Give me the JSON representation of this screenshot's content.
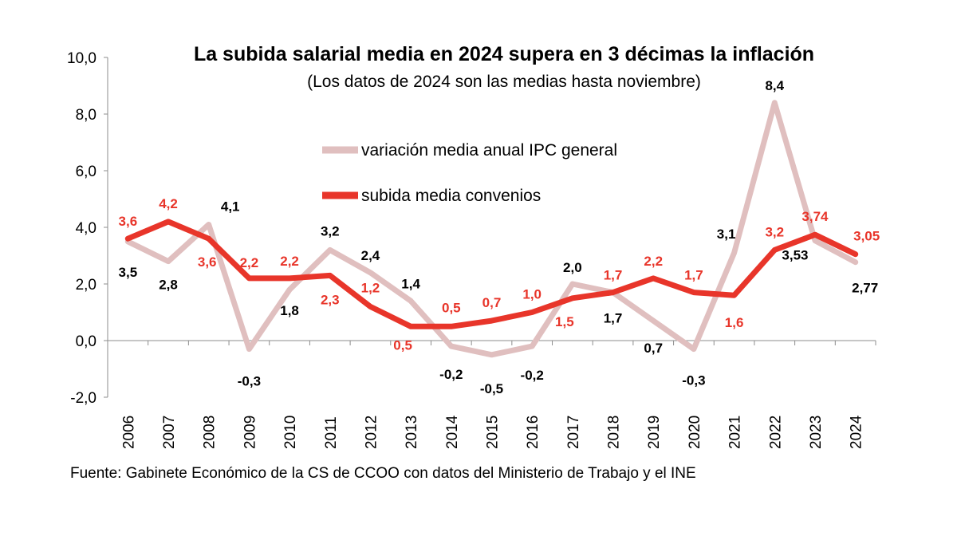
{
  "chart_data": {
    "type": "line",
    "title": "La subida salarial media en 2024 supera en 3 décimas la inflación",
    "subtitle": "(Los datos de 2024 son las medias hasta noviembre)",
    "categories": [
      "2006",
      "2007",
      "2008",
      "2009",
      "2010",
      "2011",
      "2012",
      "2013",
      "2014",
      "2015",
      "2016",
      "2017",
      "2018",
      "2019",
      "2020",
      "2021",
      "2022",
      "2023",
      "2024"
    ],
    "ylim": [
      -2,
      10
    ],
    "yticks": [
      "-2,0",
      "0,0",
      "2,0",
      "4,0",
      "6,0",
      "8,0",
      "10,0"
    ],
    "legend_position": "top-center",
    "series": [
      {
        "name": "variación media anual IPC general",
        "color": "#e0bfbf",
        "label_color": "#000000",
        "values": [
          3.5,
          2.8,
          4.1,
          -0.3,
          1.8,
          3.2,
          2.4,
          1.4,
          -0.2,
          -0.5,
          -0.2,
          2.0,
          1.7,
          0.7,
          -0.3,
          3.1,
          8.4,
          3.53,
          2.77
        ],
        "labels": [
          "3,5",
          "2,8",
          "4,1",
          "-0,3",
          "1,8",
          "3,2",
          "2,4",
          "1,4",
          "-0,2",
          "-0,5",
          "-0,2",
          "2,0",
          "1,7",
          "0,7",
          "-0,3",
          "3,1",
          "8,4",
          "3,53",
          "2,77"
        ]
      },
      {
        "name": "subida media convenios",
        "color": "#e8352a",
        "label_color": "#e8352a",
        "values": [
          3.6,
          4.2,
          3.6,
          2.2,
          2.2,
          2.3,
          1.2,
          0.5,
          0.5,
          0.7,
          1.0,
          1.5,
          1.7,
          2.2,
          1.7,
          1.6,
          3.2,
          3.74,
          3.05
        ],
        "labels": [
          "3,6",
          "4,2",
          "3,6",
          "2,2",
          "2,2",
          "2,3",
          "1,2",
          "0,5",
          "0,5",
          "0,7",
          "1,0",
          "1,5",
          "1,7",
          "2,2",
          "1,7",
          "1,6",
          "3,2",
          "3,74",
          "3,05"
        ]
      }
    ]
  },
  "source": "Fuente: Gabinete Económico de la CS de CCOO con datos del Ministerio de Trabajo y el INE"
}
